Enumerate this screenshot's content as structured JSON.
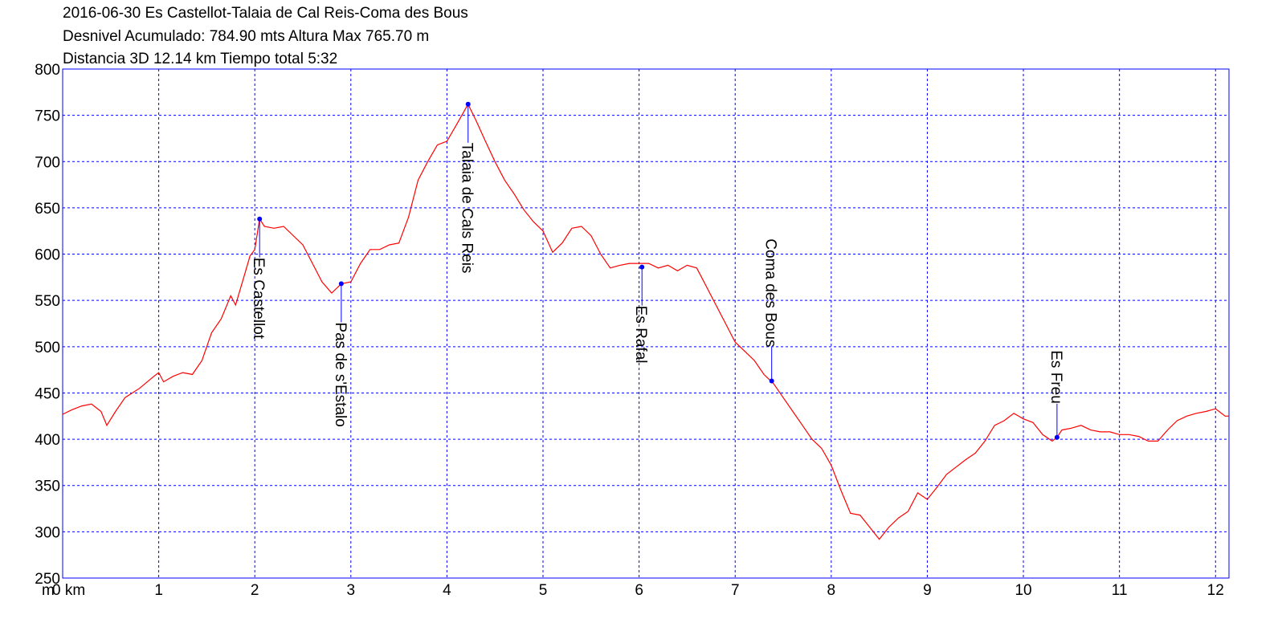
{
  "chart_data": {
    "type": "line",
    "title_lines": [
      "2016-06-30 Es Castellot-Talaia de Cal Reis-Coma des Bous",
      "Desnivel Acumulado: 784.90 mts  Altura Max 765.70 m",
      "Distancia 3D 12.14 km  Tiempo total 5:32"
    ],
    "y_label": "m",
    "xlim": [
      0,
      12.14
    ],
    "ylim": [
      250,
      800
    ],
    "xticks": [
      {
        "value": 0,
        "label": "0 km"
      },
      1,
      2,
      3,
      4,
      5,
      6,
      7,
      8,
      9,
      10,
      11,
      12
    ],
    "yticks": [
      250,
      300,
      350,
      400,
      450,
      500,
      550,
      600,
      650,
      700,
      750,
      800
    ],
    "grid": true,
    "color": "#ff0000",
    "x": [
      0,
      0.1,
      0.2,
      0.3,
      0.4,
      0.46,
      0.55,
      0.65,
      0.8,
      0.95,
      1.0,
      1.05,
      1.15,
      1.25,
      1.35,
      1.45,
      1.55,
      1.65,
      1.75,
      1.8,
      1.9,
      1.95,
      2.0,
      2.05,
      2.1,
      2.2,
      2.3,
      2.4,
      2.5,
      2.6,
      2.7,
      2.8,
      2.9,
      3.0,
      3.1,
      3.2,
      3.3,
      3.4,
      3.5,
      3.6,
      3.7,
      3.8,
      3.9,
      4.0,
      4.1,
      4.22,
      4.3,
      4.4,
      4.5,
      4.6,
      4.7,
      4.8,
      4.9,
      5.0,
      5.1,
      5.2,
      5.3,
      5.4,
      5.5,
      5.6,
      5.7,
      5.8,
      5.9,
      6.0,
      6.1,
      6.2,
      6.3,
      6.4,
      6.5,
      6.6,
      6.7,
      6.8,
      6.9,
      7.0,
      7.1,
      7.2,
      7.3,
      7.4,
      7.5,
      7.6,
      7.7,
      7.8,
      7.9,
      8.0,
      8.1,
      8.2,
      8.3,
      8.4,
      8.5,
      8.6,
      8.7,
      8.8,
      8.9,
      9.0,
      9.1,
      9.2,
      9.3,
      9.4,
      9.5,
      9.6,
      9.7,
      9.8,
      9.9,
      10.0,
      10.1,
      10.2,
      10.3,
      10.35,
      10.4,
      10.5,
      10.6,
      10.7,
      10.8,
      10.9,
      11.0,
      11.1,
      11.2,
      11.3,
      11.4,
      11.5,
      11.6,
      11.7,
      11.8,
      11.9,
      12.0,
      12.1,
      12.14
    ],
    "values": [
      427,
      432,
      436,
      438,
      430,
      415,
      430,
      445,
      455,
      468,
      472,
      462,
      468,
      472,
      470,
      485,
      515,
      530,
      555,
      545,
      580,
      598,
      605,
      638,
      630,
      628,
      630,
      620,
      610,
      590,
      570,
      558,
      568,
      570,
      590,
      605,
      605,
      610,
      612,
      640,
      680,
      700,
      718,
      722,
      740,
      762,
      745,
      722,
      700,
      680,
      665,
      648,
      635,
      625,
      602,
      612,
      628,
      630,
      620,
      600,
      585,
      588,
      590,
      590,
      590,
      585,
      588,
      582,
      588,
      585,
      565,
      545,
      525,
      505,
      495,
      485,
      470,
      460,
      445,
      430,
      415,
      400,
      390,
      372,
      345,
      320,
      318,
      305,
      292,
      305,
      315,
      322,
      342,
      335,
      348,
      362,
      370,
      378,
      385,
      398,
      415,
      420,
      428,
      422,
      418,
      405,
      398,
      402,
      410,
      412,
      415,
      410,
      408,
      408,
      405,
      405,
      403,
      398,
      398,
      410,
      420,
      425,
      428,
      430,
      433,
      425,
      425
    ],
    "waypoint_color": "#0000ff",
    "waypoints": [
      {
        "label": "Es Castellot",
        "x": 2.05,
        "y": 638,
        "side": "below"
      },
      {
        "label": "Pas de s'Estalo",
        "x": 2.9,
        "y": 568,
        "side": "below"
      },
      {
        "label": "Talaia de Cals Reis",
        "x": 4.22,
        "y": 762,
        "side": "below"
      },
      {
        "label": "Es Rafal",
        "x": 6.03,
        "y": 586,
        "side": "below"
      },
      {
        "label": "Coma des Bous",
        "x": 7.38,
        "y": 463,
        "side": "above"
      },
      {
        "label": "Es Freu",
        "x": 10.35,
        "y": 402,
        "side": "above"
      }
    ]
  }
}
